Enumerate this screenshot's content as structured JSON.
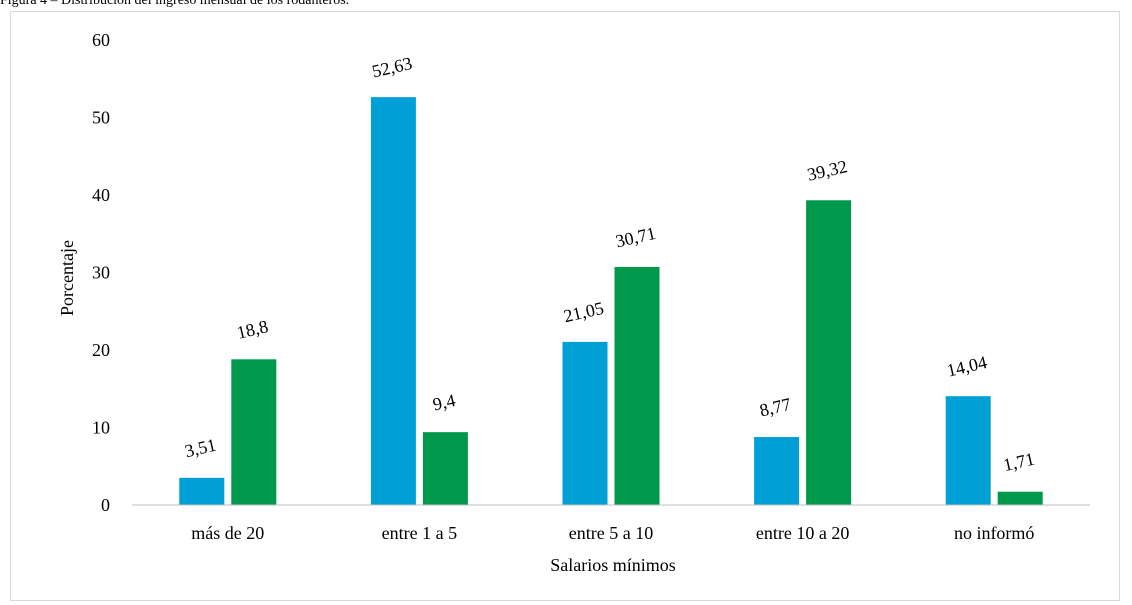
{
  "caption": "Figura 4 – Distribución del ingreso mensual de los rodanteros.",
  "colors": {
    "series1": "#00a0d6",
    "series2": "#00994c",
    "axis": "#bfbfbf"
  },
  "chart_data": {
    "type": "bar",
    "title": "",
    "xlabel": "Salarios mínimos",
    "ylabel": "Porcentaje",
    "ylim": [
      0,
      60
    ],
    "yticks": [
      "0",
      "10",
      "20",
      "30",
      "40",
      "50",
      "60"
    ],
    "categories": [
      "más de 20",
      "entre 1 a 5",
      "entre 5 a 10",
      "entre 10 a 20",
      "no informó"
    ],
    "grid": false,
    "series": [
      {
        "values": [
          3.51,
          52.63,
          21.05,
          8.77,
          14.04
        ],
        "labels": [
          "3,51",
          "52,63",
          "21,05",
          "8,77",
          "14,04"
        ]
      },
      {
        "values": [
          18.8,
          9.4,
          30.71,
          39.32,
          1.71
        ],
        "labels": [
          "18,8",
          "9,4",
          "30,71",
          "39,32",
          "1,71"
        ]
      }
    ]
  }
}
